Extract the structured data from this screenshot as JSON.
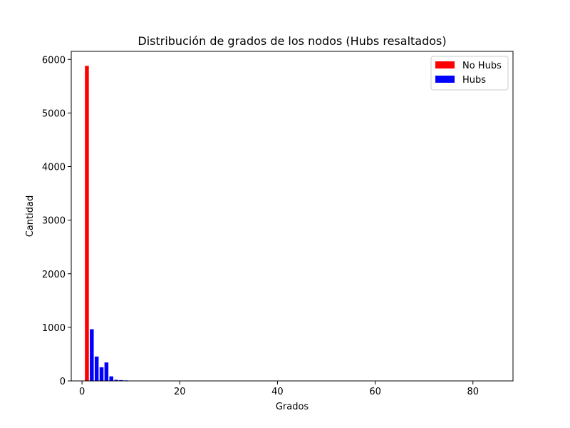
{
  "chart_data": {
    "type": "bar",
    "title": "Distribución de grados de los nodos (Hubs resaltados)",
    "xlabel": "Grados",
    "ylabel": "Cantidad",
    "xlim": [
      -2.2,
      88.2
    ],
    "ylim": [
      0,
      6150
    ],
    "xticks": [
      0,
      20,
      40,
      60,
      80
    ],
    "yticks": [
      0,
      1000,
      2000,
      3000,
      4000,
      5000,
      6000
    ],
    "grid": false,
    "legend_position": "top-right",
    "series": [
      {
        "name": "No Hubs",
        "color": "#ff0000",
        "points": [
          {
            "x": 1,
            "y": 5880
          }
        ]
      },
      {
        "name": "Hubs",
        "color": "#0000ff",
        "points": [
          {
            "x": 2,
            "y": 965
          },
          {
            "x": 3,
            "y": 455
          },
          {
            "x": 4,
            "y": 255
          },
          {
            "x": 5,
            "y": 345
          },
          {
            "x": 6,
            "y": 85
          },
          {
            "x": 7,
            "y": 20
          },
          {
            "x": 8,
            "y": 15
          },
          {
            "x": 9,
            "y": 10
          }
        ]
      }
    ]
  }
}
